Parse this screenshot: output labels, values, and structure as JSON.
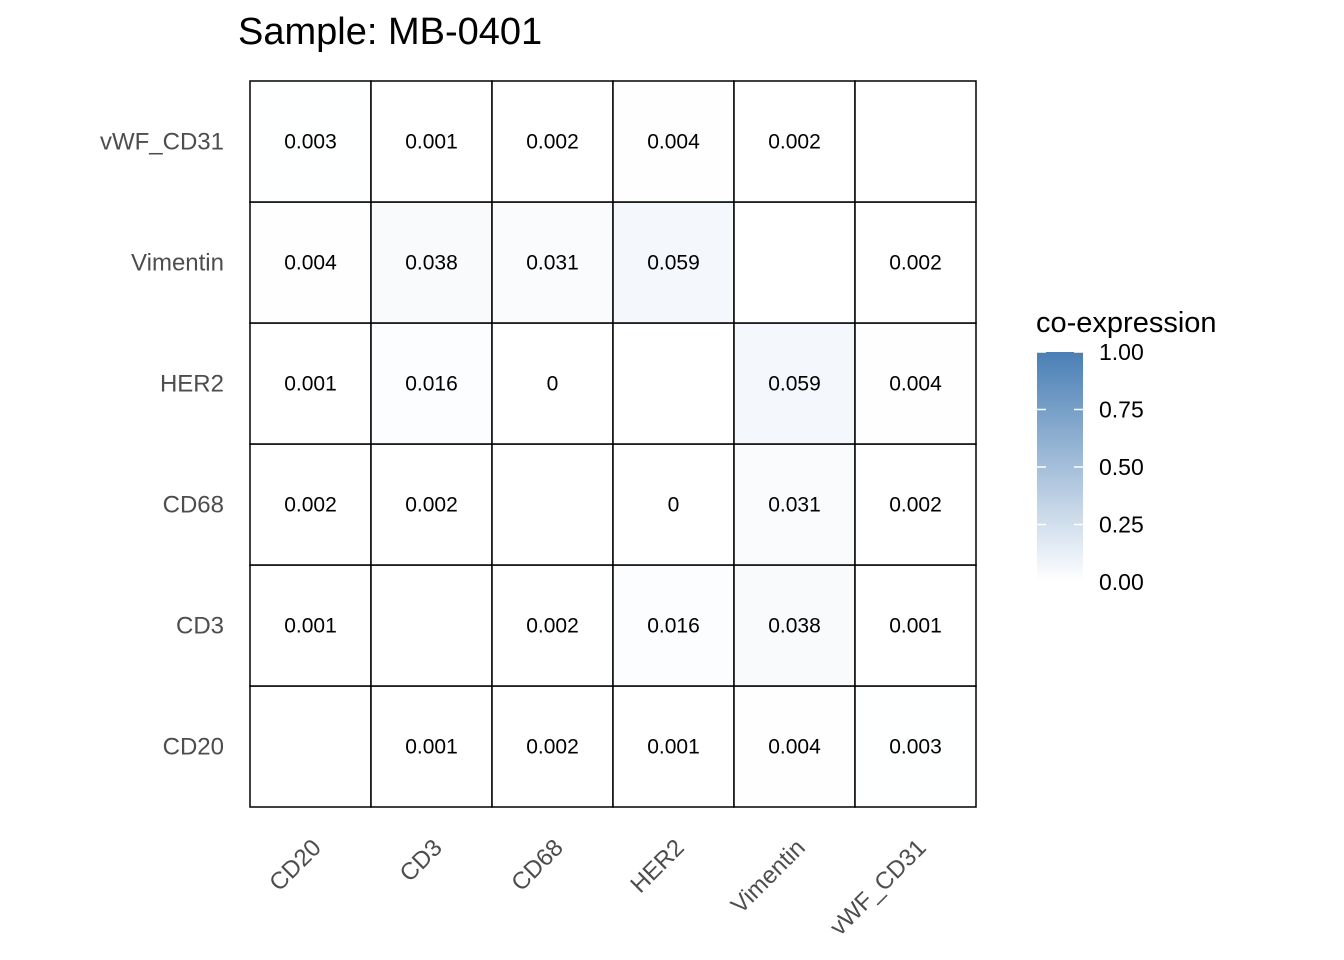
{
  "chart_data": {
    "type": "heatmap",
    "title": "Sample: MB-0401",
    "x_categories": [
      "CD20",
      "CD3",
      "CD68",
      "HER2",
      "Vimentin",
      "vWF_CD31"
    ],
    "y_categories": [
      "CD20",
      "CD3",
      "CD68",
      "HER2",
      "Vimentin",
      "vWF_CD31"
    ],
    "cells": [
      {
        "x": "CD20",
        "y": "vWF_CD31",
        "value": 0.003,
        "label": "0.003"
      },
      {
        "x": "CD3",
        "y": "vWF_CD31",
        "value": 0.001,
        "label": "0.001"
      },
      {
        "x": "CD68",
        "y": "vWF_CD31",
        "value": 0.002,
        "label": "0.002"
      },
      {
        "x": "HER2",
        "y": "vWF_CD31",
        "value": 0.004,
        "label": "0.004"
      },
      {
        "x": "Vimentin",
        "y": "vWF_CD31",
        "value": 0.002,
        "label": "0.002"
      },
      {
        "x": "CD20",
        "y": "Vimentin",
        "value": 0.004,
        "label": "0.004"
      },
      {
        "x": "CD3",
        "y": "Vimentin",
        "value": 0.038,
        "label": "0.038"
      },
      {
        "x": "CD68",
        "y": "Vimentin",
        "value": 0.031,
        "label": "0.031"
      },
      {
        "x": "HER2",
        "y": "Vimentin",
        "value": 0.059,
        "label": "0.059"
      },
      {
        "x": "vWF_CD31",
        "y": "Vimentin",
        "value": 0.002,
        "label": "0.002"
      },
      {
        "x": "CD20",
        "y": "HER2",
        "value": 0.001,
        "label": "0.001"
      },
      {
        "x": "CD3",
        "y": "HER2",
        "value": 0.016,
        "label": "0.016"
      },
      {
        "x": "CD68",
        "y": "HER2",
        "value": 0,
        "label": "0"
      },
      {
        "x": "Vimentin",
        "y": "HER2",
        "value": 0.059,
        "label": "0.059"
      },
      {
        "x": "vWF_CD31",
        "y": "HER2",
        "value": 0.004,
        "label": "0.004"
      },
      {
        "x": "CD20",
        "y": "CD68",
        "value": 0.002,
        "label": "0.002"
      },
      {
        "x": "CD3",
        "y": "CD68",
        "value": 0.002,
        "label": "0.002"
      },
      {
        "x": "HER2",
        "y": "CD68",
        "value": 0,
        "label": "0"
      },
      {
        "x": "Vimentin",
        "y": "CD68",
        "value": 0.031,
        "label": "0.031"
      },
      {
        "x": "vWF_CD31",
        "y": "CD68",
        "value": 0.002,
        "label": "0.002"
      },
      {
        "x": "CD20",
        "y": "CD3",
        "value": 0.001,
        "label": "0.001"
      },
      {
        "x": "CD68",
        "y": "CD3",
        "value": 0.002,
        "label": "0.002"
      },
      {
        "x": "HER2",
        "y": "CD3",
        "value": 0.016,
        "label": "0.016"
      },
      {
        "x": "Vimentin",
        "y": "CD3",
        "value": 0.038,
        "label": "0.038"
      },
      {
        "x": "vWF_CD31",
        "y": "CD3",
        "value": 0.001,
        "label": "0.001"
      },
      {
        "x": "CD3",
        "y": "CD20",
        "value": 0.001,
        "label": "0.001"
      },
      {
        "x": "CD68",
        "y": "CD20",
        "value": 0.002,
        "label": "0.002"
      },
      {
        "x": "HER2",
        "y": "CD20",
        "value": 0.001,
        "label": "0.001"
      },
      {
        "x": "Vimentin",
        "y": "CD20",
        "value": 0.004,
        "label": "0.004"
      },
      {
        "x": "vWF_CD31",
        "y": "CD20",
        "value": 0.003,
        "label": "0.003"
      }
    ],
    "legend": {
      "title": "co-expression",
      "placement": "right",
      "range": [
        0,
        1
      ],
      "ticks": [
        {
          "value": 1.0,
          "label": "1.00"
        },
        {
          "value": 0.75,
          "label": "0.75"
        },
        {
          "value": 0.5,
          "label": "0.50"
        },
        {
          "value": 0.25,
          "label": "0.25"
        },
        {
          "value": 0.0,
          "label": "0.00"
        }
      ],
      "color_low": "#ffffff",
      "color_high": "#4a7fb5"
    },
    "grid": false
  }
}
